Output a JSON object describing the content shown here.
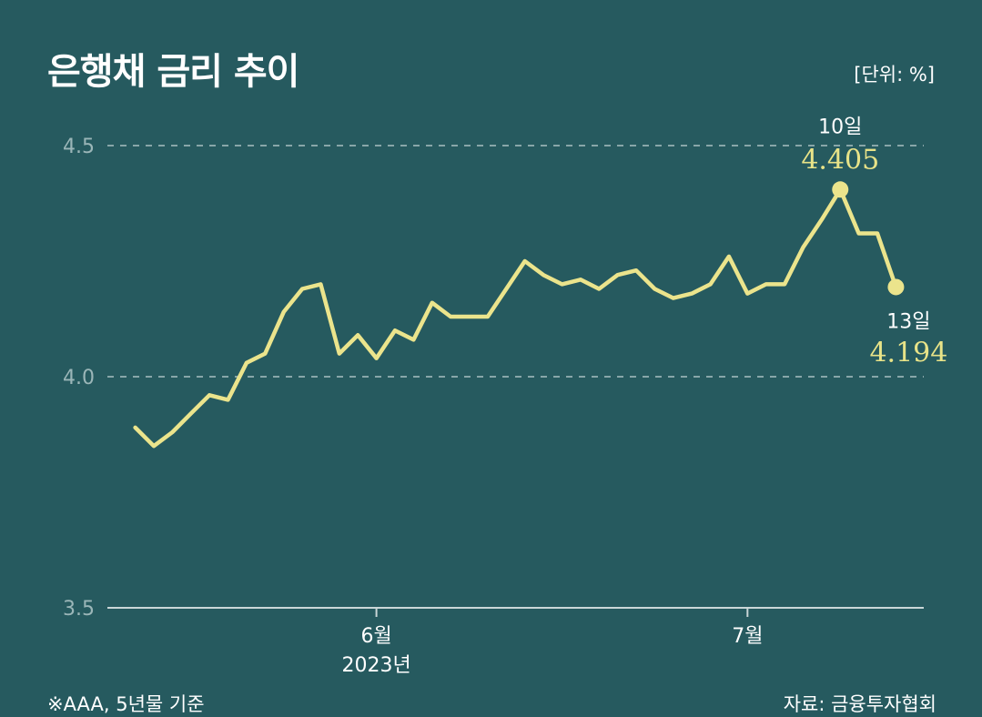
{
  "header": {
    "title": "은행채 금리 추이",
    "unit": "[단위: %]"
  },
  "footer": {
    "note": "※AAA, 5년물 기준",
    "source": "자료: 금융투자협회"
  },
  "colors": {
    "background": "#265a5f",
    "line": "#ebe48c",
    "grid": "#a8c0c2",
    "axis": "#c9d6d7",
    "tick_text": "#9bb6b8"
  },
  "chart_data": {
    "type": "line",
    "title": "은행채 금리 추이",
    "ylabel": "",
    "ylim": [
      3.5,
      4.5
    ],
    "yticks": [
      {
        "value": 4.5,
        "label": "4.5",
        "dashed": true
      },
      {
        "value": 4.0,
        "label": "4.0",
        "dashed": true
      },
      {
        "value": 3.5,
        "label": "3.5",
        "dashed": false
      }
    ],
    "xticks": [
      {
        "x": 13,
        "label": "6월",
        "sublabel": "2023년"
      },
      {
        "x": 33,
        "label": "7월",
        "sublabel": ""
      }
    ],
    "xlim": [
      -1.5,
      42.5
    ],
    "grid": "horizontal dashed",
    "series": [
      {
        "values": [
          3.89,
          3.85,
          3.88,
          3.92,
          3.96,
          3.95,
          4.03,
          4.05,
          4.14,
          4.19,
          4.2,
          4.05,
          4.09,
          4.04,
          4.1,
          4.08,
          4.16,
          4.13,
          4.13,
          4.13,
          4.19,
          4.25,
          4.22,
          4.2,
          4.21,
          4.19,
          4.22,
          4.23,
          4.19,
          4.17,
          4.18,
          4.2,
          4.26,
          4.18,
          4.2,
          4.2,
          4.28,
          4.34,
          4.405,
          4.31,
          4.31,
          4.194
        ]
      }
    ],
    "annotations": [
      {
        "index": 38,
        "date": "10일",
        "value": "4.405",
        "position": "above"
      },
      {
        "index": 41,
        "date": "13일",
        "value": "4.194",
        "position": "below"
      }
    ]
  }
}
